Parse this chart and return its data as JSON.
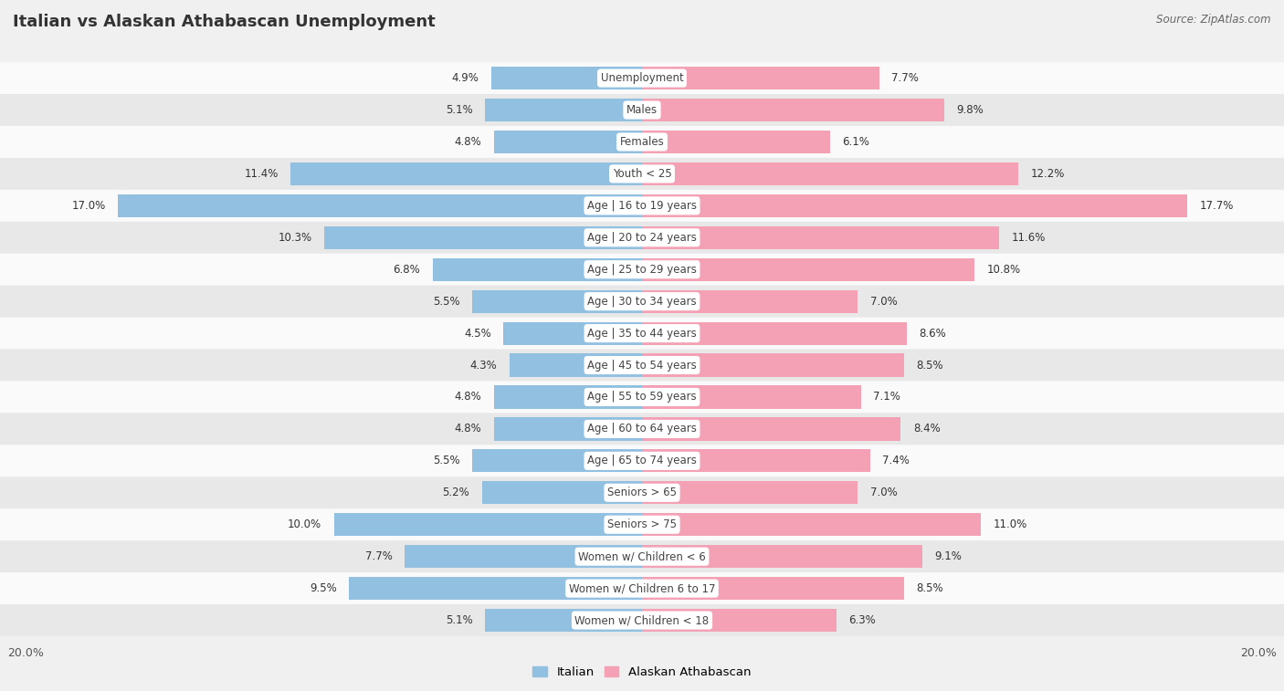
{
  "title": "Italian vs Alaskan Athabascan Unemployment",
  "source": "Source: ZipAtlas.com",
  "categories": [
    "Unemployment",
    "Males",
    "Females",
    "Youth < 25",
    "Age | 16 to 19 years",
    "Age | 20 to 24 years",
    "Age | 25 to 29 years",
    "Age | 30 to 34 years",
    "Age | 35 to 44 years",
    "Age | 45 to 54 years",
    "Age | 55 to 59 years",
    "Age | 60 to 64 years",
    "Age | 65 to 74 years",
    "Seniors > 65",
    "Seniors > 75",
    "Women w/ Children < 6",
    "Women w/ Children 6 to 17",
    "Women w/ Children < 18"
  ],
  "italian": [
    4.9,
    5.1,
    4.8,
    11.4,
    17.0,
    10.3,
    6.8,
    5.5,
    4.5,
    4.3,
    4.8,
    4.8,
    5.5,
    5.2,
    10.0,
    7.7,
    9.5,
    5.1
  ],
  "alaskan": [
    7.7,
    9.8,
    6.1,
    12.2,
    17.7,
    11.6,
    10.8,
    7.0,
    8.6,
    8.5,
    7.1,
    8.4,
    7.4,
    7.0,
    11.0,
    9.1,
    8.5,
    6.3
  ],
  "italian_color": "#92C0E0",
  "alaskan_color": "#F4A0B5",
  "italian_label": "Italian",
  "alaskan_label": "Alaskan Athabascan",
  "x_max": 20.0,
  "background_color": "#f0f0f0",
  "row_color_light": "#fafafa",
  "row_color_dark": "#e8e8e8"
}
